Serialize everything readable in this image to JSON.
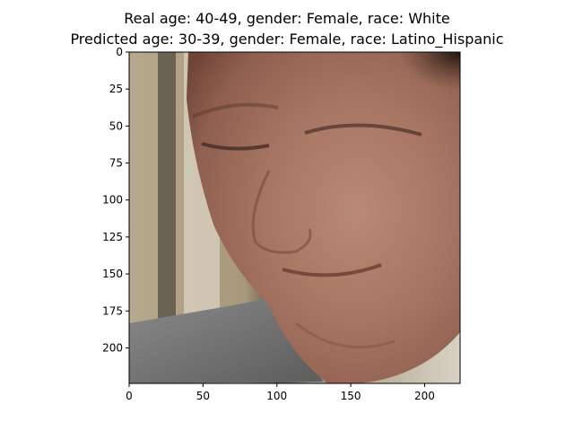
{
  "figure": {
    "title_line1": "Real age: 40-49, gender: Female, race: White",
    "title_line2": "Predicted age: 30-39, gender: Female, race: Latino_Hispanic"
  },
  "axes": {
    "x_ticks": [
      "0",
      "50",
      "100",
      "150",
      "200"
    ],
    "y_ticks": [
      "0",
      "25",
      "50",
      "75",
      "100",
      "125",
      "150",
      "175",
      "200"
    ],
    "x_range": [
      0,
      224
    ],
    "y_range": [
      0,
      224
    ]
  },
  "image": {
    "subject": "close-up of a smiling woman's face, looking down"
  }
}
